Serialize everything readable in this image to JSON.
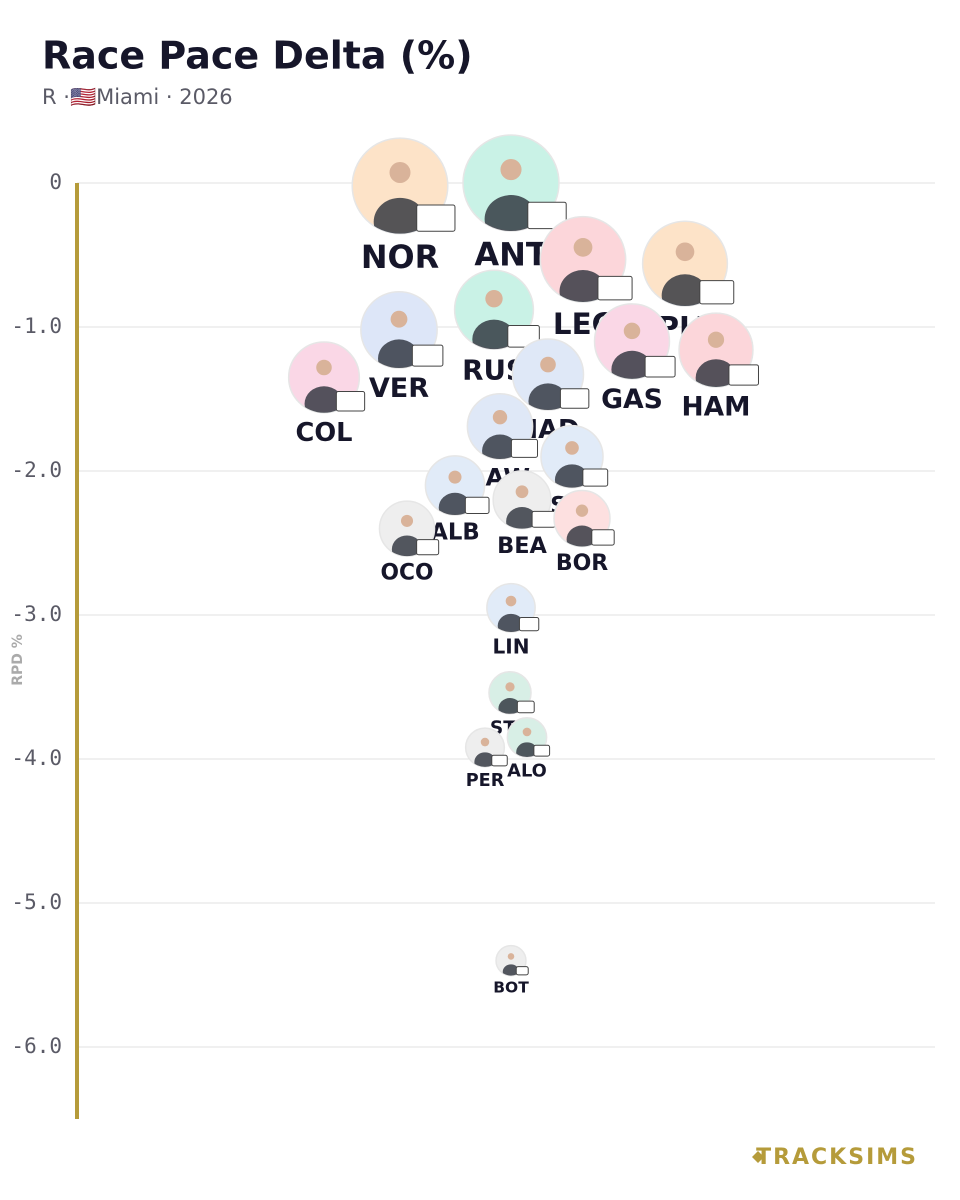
{
  "chart_data": {
    "type": "scatter",
    "title": "Race Pace Delta (%)",
    "subtitle": "R ·🇺🇸Miami · 2026",
    "ylabel": "RPD %",
    "categories": [
      "NOR",
      "ANT",
      "LEC",
      "PIA",
      "RUS",
      "VER",
      "GAS",
      "HAM",
      "COL",
      "HAD",
      "LAW",
      "SAI",
      "ALB",
      "BEA",
      "BOR",
      "OCO",
      "LIN",
      "STR",
      "ALO",
      "PER",
      "BOT"
    ],
    "values": [
      -0.02,
      0,
      -0.53,
      -0.56,
      -0.88,
      -1.02,
      -1.1,
      -1.16,
      -1.35,
      -1.33,
      -1.69,
      -1.9,
      -2.1,
      -2.2,
      -2.33,
      -2.4,
      -2.95,
      -3.54,
      -3.85,
      -3.92,
      -5.4
    ],
    "colors": [
      "#fde3c8",
      "#c9f2e6",
      "#fcd6da",
      "#fde3c8",
      "#c9f2e6",
      "#dde6f8",
      "#fad7e6",
      "#fcd6da",
      "#fad7e6",
      "#dfe8f7",
      "#dfe8f7",
      "#e1ebf8",
      "#e1ebf8",
      "#eeeeee",
      "#fde0e0",
      "#eeeeee",
      "#e1ebf8",
      "#d8efe6",
      "#d8efe6",
      "#eeeeee",
      "#eeeeee"
    ],
    "ylim": [
      -6.5,
      0
    ],
    "yticks": [
      0,
      {
        "value": -1,
        "label": "-1.0"
      },
      {
        "value": -2,
        "label": "-2.0"
      },
      {
        "value": -3,
        "label": "-3.0"
      },
      {
        "value": -4,
        "label": "-4.0"
      },
      {
        "value": -5,
        "label": "-5.0"
      },
      {
        "value": -6,
        "label": "-6.0"
      }
    ],
    "grid": true
  },
  "brand": "TRACKSIMS"
}
